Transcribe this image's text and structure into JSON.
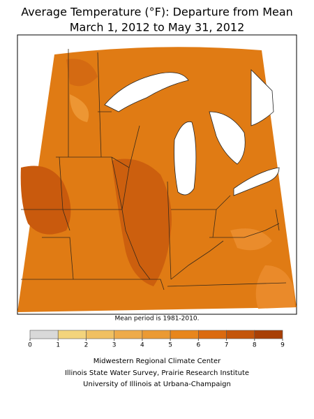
{
  "header": {
    "title_lines": [
      "Average Temperature (°F): Departure from Mean",
      "March 1, 2012 to May 31, 2012"
    ]
  },
  "note": "Mean period is 1981-2010.",
  "legend": {
    "ticks": [
      0,
      1,
      2,
      3,
      4,
      5,
      6,
      7,
      8,
      9
    ],
    "colors": [
      "#d9d9d9",
      "#f3d47c",
      "#f0c062",
      "#eeab4a",
      "#eb9a34",
      "#e8861d",
      "#db6a10",
      "#c4550a",
      "#a83f05"
    ]
  },
  "credits": [
    "Midwestern Regional Climate Center",
    "Illinois State Water Survey, Prairie Research Institute",
    "University of Illinois at Urbana-Champaign"
  ]
}
